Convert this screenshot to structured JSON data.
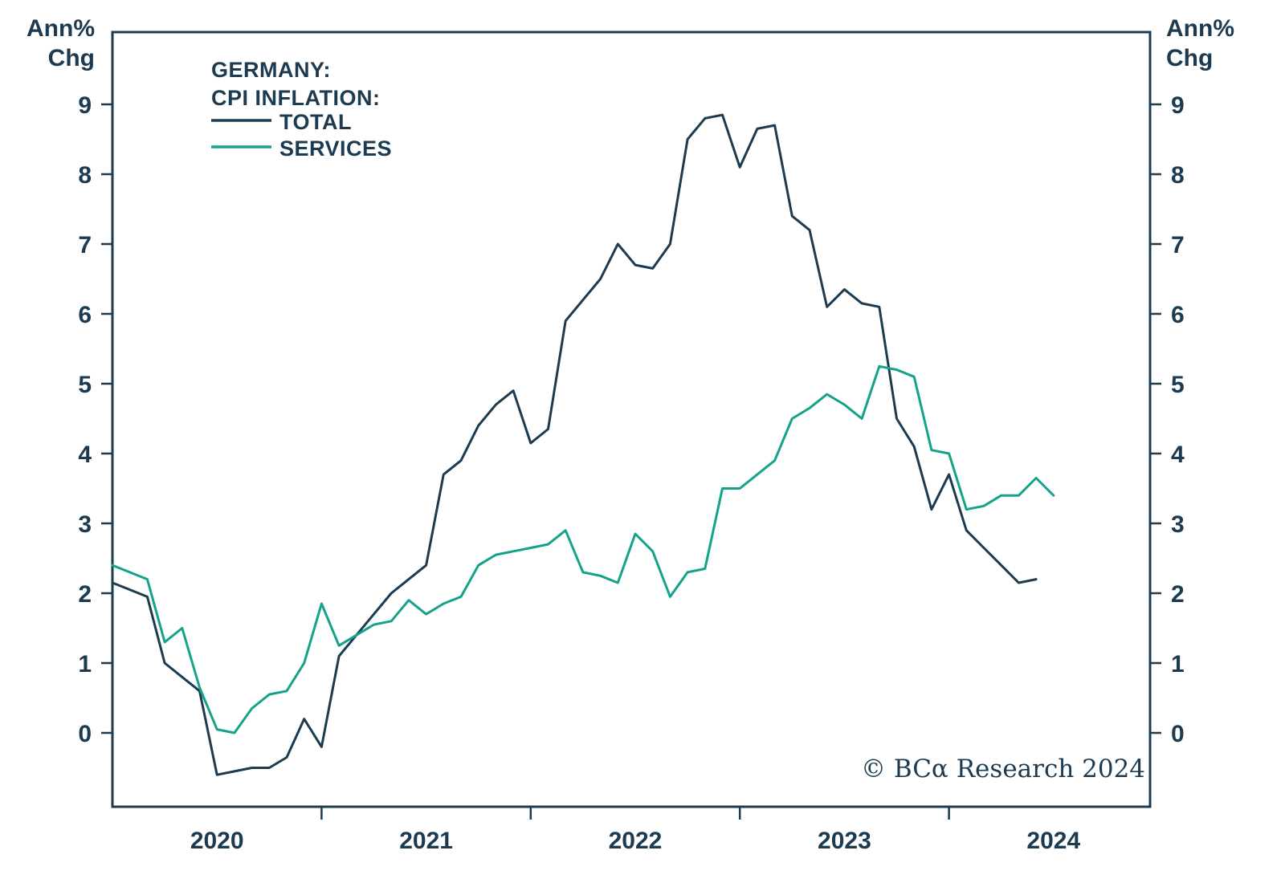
{
  "footer": {
    "copyright": "© BCα Research 2024"
  },
  "chart_data": {
    "type": "line",
    "title_line1": "GERMANY:",
    "title_line2": "CPI INFLATION:",
    "ylabel_line1": "Ann%",
    "ylabel_line2": "Chg",
    "grid": false,
    "legend_position": "top-left",
    "frame_color": "#1c3a50",
    "ylim": [
      -1,
      10
    ],
    "yticks": [
      0,
      1,
      2,
      3,
      4,
      5,
      6,
      7,
      8,
      9
    ],
    "x_year_labels": [
      "2020",
      "2021",
      "2022",
      "2023",
      "2024"
    ],
    "x": [
      "2020-01",
      "2020-02",
      "2020-03",
      "2020-04",
      "2020-05",
      "2020-06",
      "2020-07",
      "2020-08",
      "2020-09",
      "2020-10",
      "2020-11",
      "2020-12",
      "2021-01",
      "2021-02",
      "2021-03",
      "2021-04",
      "2021-05",
      "2021-06",
      "2021-07",
      "2021-08",
      "2021-09",
      "2021-10",
      "2021-11",
      "2021-12",
      "2022-01",
      "2022-02",
      "2022-03",
      "2022-04",
      "2022-05",
      "2022-06",
      "2022-07",
      "2022-08",
      "2022-09",
      "2022-10",
      "2022-11",
      "2022-12",
      "2023-01",
      "2023-02",
      "2023-03",
      "2023-04",
      "2023-05",
      "2023-06",
      "2023-07",
      "2023-08",
      "2023-09",
      "2023-10",
      "2023-11",
      "2023-12",
      "2024-01",
      "2024-02",
      "2024-03",
      "2024-04",
      "2024-05",
      "2024-06",
      "2024-07"
    ],
    "series": [
      {
        "name": "TOTAL",
        "color": "#1c3a50",
        "values": [
          2.15,
          2.05,
          1.95,
          1.0,
          0.8,
          0.6,
          -0.6,
          -0.55,
          -0.5,
          -0.5,
          -0.35,
          0.2,
          -0.2,
          1.1,
          1.4,
          1.7,
          2.0,
          2.2,
          2.4,
          3.7,
          3.9,
          4.4,
          4.7,
          4.9,
          4.15,
          4.35,
          5.9,
          6.2,
          6.5,
          7.0,
          6.7,
          6.65,
          7.0,
          8.5,
          8.8,
          8.85,
          8.1,
          8.65,
          8.7,
          7.4,
          7.2,
          6.1,
          6.35,
          6.15,
          6.1,
          4.5,
          4.1,
          3.2,
          3.7,
          2.9,
          2.65,
          2.4,
          2.15,
          2.2,
          null
        ]
      },
      {
        "name": "SERVICES",
        "color": "#14a38a",
        "values": [
          2.4,
          2.3,
          2.2,
          1.3,
          1.5,
          0.65,
          0.05,
          0.0,
          0.35,
          0.55,
          0.6,
          1.0,
          1.85,
          1.25,
          1.4,
          1.55,
          1.6,
          1.9,
          1.7,
          1.85,
          1.95,
          2.4,
          2.55,
          2.6,
          2.65,
          2.7,
          2.9,
          2.3,
          2.25,
          2.15,
          2.85,
          2.6,
          1.95,
          2.3,
          2.35,
          3.5,
          3.5,
          3.7,
          3.9,
          4.5,
          4.65,
          4.85,
          4.7,
          4.5,
          5.25,
          5.2,
          5.1,
          4.05,
          4.0,
          3.2,
          3.25,
          3.4,
          3.4,
          3.65,
          3.4
        ]
      }
    ]
  }
}
